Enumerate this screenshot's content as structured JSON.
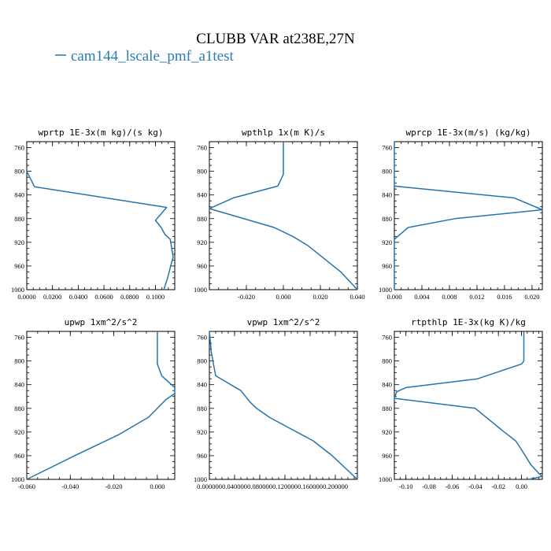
{
  "figure": {
    "title": "CLUBB VAR at238E,27N",
    "legend_label": "cam144_lscale_pmf_a1test",
    "legend_color": "#2474ad"
  },
  "chart_data": [
    {
      "type": "line",
      "title": "wprtp  1E-3x(m kg)/(s kg)",
      "xlim": [
        0.0,
        0.115
      ],
      "ylim": [
        1000,
        750
      ],
      "xticks": [
        0.0,
        0.02,
        0.04,
        0.06,
        0.08,
        0.1
      ],
      "xtick_labels": [
        "0.0000",
        "0.0200",
        "0.0400",
        "0.0600",
        "0.0800",
        "0.1000"
      ],
      "yticks": [
        760,
        800,
        840,
        880,
        920,
        960,
        1000
      ],
      "series": [
        {
          "x": [
            0.0,
            0.006,
            0.1087,
            0.1,
            0.1045,
            0.1075,
            0.1115,
            0.1138,
            0.1118,
            0.1095,
            0.1065
          ],
          "y": [
            800,
            826,
            861,
            883,
            895,
            907,
            915,
            945,
            960,
            980,
            1000
          ]
        }
      ]
    },
    {
      "type": "line",
      "title": "wpthlp  1x(m K)/s",
      "xlim": [
        -0.04,
        0.04
      ],
      "ylim": [
        1000,
        750
      ],
      "xticks": [
        -0.02,
        0.0,
        0.02,
        0.04
      ],
      "xtick_labels": [
        "-0.020",
        "0.000",
        "0.020",
        "0.040"
      ],
      "yticks": [
        760,
        800,
        840,
        880,
        920,
        960,
        1000
      ],
      "series": [
        {
          "x": [
            0.0,
            0.0,
            -0.003,
            -0.027,
            -0.04,
            -0.005,
            0.005,
            0.013,
            0.021,
            0.031,
            0.04
          ],
          "y": [
            750,
            805,
            825,
            845,
            863,
            895,
            910,
            925,
            945,
            970,
            1000
          ]
        }
      ]
    },
    {
      "type": "line",
      "title": "wprcp  1E-3x(m/s) (kg/kg)",
      "xlim": [
        0.0,
        0.0215
      ],
      "ylim": [
        1000,
        750
      ],
      "xticks": [
        0.0,
        0.004,
        0.008,
        0.012,
        0.016,
        0.02
      ],
      "xtick_labels": [
        "0.000",
        "0.004",
        "0.008",
        "0.012",
        "0.016",
        "0.020"
      ],
      "yticks": [
        760,
        800,
        840,
        880,
        920,
        960,
        1000
      ],
      "series": [
        {
          "x": [
            0.0,
            0.0,
            0.0174,
            0.0215,
            0.0088,
            0.002,
            0.0,
            0.0
          ],
          "y": [
            750,
            825,
            845,
            865,
            880,
            895,
            915,
            1000
          ]
        }
      ]
    },
    {
      "type": "line",
      "title": "upwp  1xm^2/s^2",
      "xlim": [
        -0.06,
        0.008
      ],
      "ylim": [
        1000,
        750
      ],
      "xticks": [
        -0.06,
        -0.04,
        -0.02,
        0.0
      ],
      "xtick_labels": [
        "-0.060",
        "-0.040",
        "-0.020",
        "0.000"
      ],
      "yticks": [
        760,
        800,
        840,
        880,
        920,
        960,
        1000
      ],
      "series": [
        {
          "x": [
            0.0,
            0.0,
            0.002,
            0.008,
            0.008,
            0.004,
            -0.004,
            -0.018,
            -0.038,
            -0.06
          ],
          "y": [
            750,
            805,
            825,
            845,
            855,
            865,
            895,
            925,
            960,
            1000
          ]
        }
      ]
    },
    {
      "type": "line",
      "title": "vpwp  1xm^2/s^2",
      "xlim": [
        0.0,
        0.235
      ],
      "ylim": [
        1000,
        750
      ],
      "xticks": [
        0.0,
        0.04,
        0.08,
        0.12,
        0.16,
        0.2
      ],
      "xtick_labels": [
        "0.000000",
        "0.040000",
        "0.080000",
        "0.120000",
        "0.160000",
        "0.200000"
      ],
      "yticks": [
        760,
        800,
        840,
        880,
        920,
        960,
        1000
      ],
      "series": [
        {
          "x": [
            0.0,
            0.003,
            0.01,
            0.05,
            0.065,
            0.075,
            0.095,
            0.13,
            0.165,
            0.195,
            0.235
          ],
          "y": [
            750,
            785,
            825,
            850,
            870,
            880,
            895,
            915,
            935,
            960,
            1000
          ]
        }
      ]
    },
    {
      "type": "line",
      "title": "rtpthlp  1E-3x(kg K)/kg",
      "xlim": [
        -0.11,
        0.018
      ],
      "ylim": [
        1000,
        750
      ],
      "xticks": [
        -0.1,
        -0.08,
        -0.06,
        -0.04,
        -0.02,
        0.0
      ],
      "xtick_labels": [
        "-0.10",
        "-0.08",
        "-0.06",
        "-0.04",
        "-0.02",
        "0.00"
      ],
      "yticks": [
        760,
        800,
        840,
        880,
        920,
        960,
        1000
      ],
      "series": [
        {
          "x": [
            0.002,
            0.002,
            0.0,
            -0.038,
            -0.1,
            -0.108,
            -0.11,
            -0.04,
            -0.015,
            -0.005,
            0.0,
            0.008,
            0.015,
            0.018,
            0.006
          ],
          "y": [
            750,
            800,
            805,
            830,
            845,
            852,
            863,
            880,
            920,
            935,
            950,
            975,
            990,
            995,
            1000
          ]
        }
      ]
    }
  ]
}
